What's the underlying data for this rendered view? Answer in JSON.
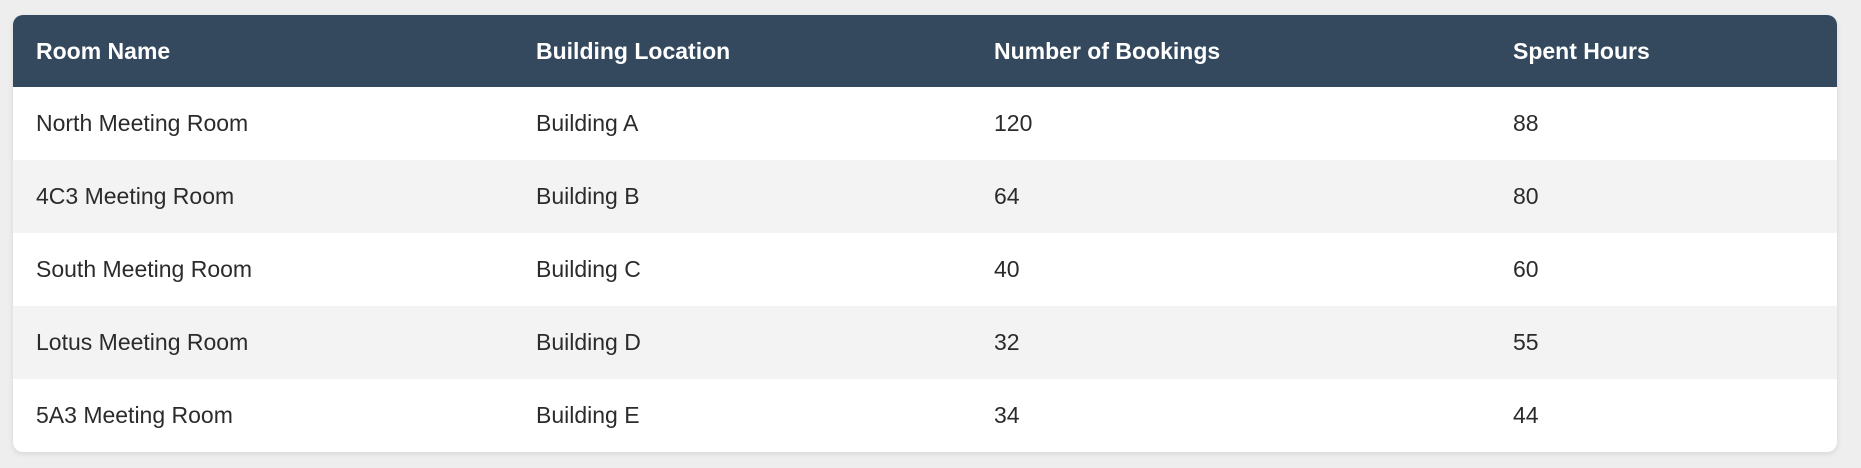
{
  "table": {
    "headers": [
      "Room Name",
      "Building Location",
      "Number of Bookings",
      "Spent Hours"
    ],
    "rows": [
      [
        "North Meeting Room",
        "Building A",
        "120",
        "88"
      ],
      [
        "4C3 Meeting Room",
        "Building B",
        "64",
        "80"
      ],
      [
        "South Meeting Room",
        "Building C",
        "40",
        "60"
      ],
      [
        "Lotus Meeting Room",
        "Building D",
        "32",
        "55"
      ],
      [
        "5A3 Meeting Room",
        "Building E",
        "34",
        "44"
      ]
    ]
  },
  "colors": {
    "header_bg": "#34495e",
    "header_text": "#ffffff",
    "alt_row_bg": "#f3f3f3",
    "page_bg": "#efeeef"
  }
}
